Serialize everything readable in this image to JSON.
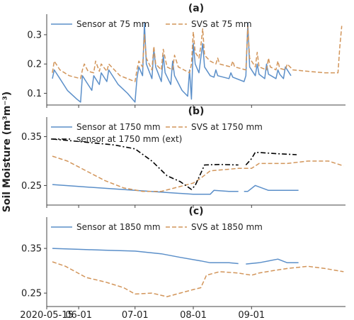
{
  "colors": {
    "sensor": "#5b8fc9",
    "svs": "#d2955a",
    "ext": "#000000",
    "axis": "#444444"
  },
  "ylabel": "Soil Moisture (m³m⁻³)",
  "xaxis": {
    "type": "date",
    "range": [
      "2020-05-15",
      "2020-10-21"
    ],
    "ticks": [
      "2020-05-15",
      "2020-06-01",
      "2020-07-01",
      "2020-08-01",
      "2020-09-01"
    ],
    "tick_labels": [
      "2020-05-15",
      "06-01",
      "07-01",
      "08-01",
      "09-01"
    ]
  },
  "chart_data": [
    {
      "type": "line",
      "title": "(a)",
      "ylim": [
        0.06,
        0.37
      ],
      "yticks": [
        0.1,
        0.2,
        0.3
      ],
      "ytick_labels": [
        "0.1",
        "0.2",
        "0.3"
      ],
      "legend": "top",
      "series": [
        {
          "name": "Sensor at 75 mm",
          "style": "solid",
          "color": "#5b8fc9",
          "points": [
            [
              "2020-05-18",
              0.15
            ],
            [
              "2020-05-19",
              0.18
            ],
            [
              "2020-05-22",
              0.15
            ],
            [
              "2020-05-26",
              0.11
            ],
            [
              "2020-05-31",
              0.08
            ],
            [
              "2020-06-02",
              0.07
            ],
            [
              "2020-06-03",
              0.16
            ],
            [
              "2020-06-05",
              0.14
            ],
            [
              "2020-06-08",
              0.11
            ],
            [
              "2020-06-09",
              0.16
            ],
            [
              "2020-06-12",
              0.13
            ],
            [
              "2020-06-13",
              0.17
            ],
            [
              "2020-06-16",
              0.14
            ],
            [
              "2020-06-17",
              0.18
            ],
            [
              "2020-06-22",
              0.13
            ],
            [
              "2020-06-27",
              0.1
            ],
            [
              "2020-07-01",
              0.07
            ],
            [
              "2020-07-02",
              0.15
            ],
            [
              "2020-07-03",
              0.19
            ],
            [
              "2020-07-05",
              0.16
            ],
            [
              "2020-07-06",
              0.34
            ],
            [
              "2020-07-07",
              0.2
            ],
            [
              "2020-07-10",
              0.15
            ],
            [
              "2020-07-11",
              0.25
            ],
            [
              "2020-07-12",
              0.19
            ],
            [
              "2020-07-15",
              0.14
            ],
            [
              "2020-07-16",
              0.23
            ],
            [
              "2020-07-17",
              0.17
            ],
            [
              "2020-07-20",
              0.13
            ],
            [
              "2020-07-21",
              0.21
            ],
            [
              "2020-07-22",
              0.16
            ],
            [
              "2020-07-26",
              0.11
            ],
            [
              "2020-07-29",
              0.09
            ],
            [
              "2020-07-30",
              0.18
            ],
            [
              "2020-07-31",
              0.08
            ],
            [
              "2020-08-01",
              0.27
            ],
            [
              "2020-08-02",
              0.2
            ],
            [
              "2020-08-04",
              0.17
            ],
            [
              "2020-08-05",
              0.22
            ],
            [
              "2020-08-06",
              0.27
            ],
            [
              "2020-08-07",
              0.19
            ],
            [
              "2020-08-10",
              0.16
            ],
            [
              "2020-08-12",
              0.155
            ],
            [
              "2020-08-13",
              0.18
            ],
            [
              "2020-08-14",
              0.16
            ],
            [
              "2020-08-20",
              0.15
            ],
            [
              "2020-08-21",
              0.17
            ],
            [
              "2020-08-22",
              0.155
            ],
            [
              "2020-08-28",
              0.14
            ],
            [
              "2020-08-29",
              0.16
            ],
            [
              "2020-08-30",
              0.34
            ],
            [
              "2020-08-31",
              0.19
            ],
            [
              "2020-09-03",
              0.16
            ],
            [
              "2020-09-04",
              0.2
            ],
            [
              "2020-09-05",
              0.165
            ],
            [
              "2020-09-08",
              0.15
            ],
            [
              "2020-09-09",
              0.2
            ],
            [
              "2020-09-10",
              0.165
            ],
            [
              "2020-09-14",
              0.15
            ],
            [
              "2020-09-15",
              0.18
            ],
            [
              "2020-09-16",
              0.165
            ],
            [
              "2020-09-18",
              0.15
            ],
            [
              "2020-09-19",
              0.19
            ],
            [
              "2020-09-22",
              0.16
            ]
          ]
        },
        {
          "name": "SVS at 75 mm",
          "style": "dashed",
          "color": "#d2955a",
          "points": [
            [
              "2020-05-18",
              0.17
            ],
            [
              "2020-05-19",
              0.21
            ],
            [
              "2020-05-22",
              0.18
            ],
            [
              "2020-05-27",
              0.16
            ],
            [
              "2020-06-02",
              0.15
            ],
            [
              "2020-06-03",
              0.18
            ],
            [
              "2020-06-04",
              0.2
            ],
            [
              "2020-06-06",
              0.175
            ],
            [
              "2020-06-09",
              0.17
            ],
            [
              "2020-06-10",
              0.21
            ],
            [
              "2020-06-12",
              0.175
            ],
            [
              "2020-06-13",
              0.2
            ],
            [
              "2020-06-16",
              0.175
            ],
            [
              "2020-06-17",
              0.2
            ],
            [
              "2020-06-23",
              0.16
            ],
            [
              "2020-07-01",
              0.14
            ],
            [
              "2020-07-02",
              0.18
            ],
            [
              "2020-07-03",
              0.21
            ],
            [
              "2020-07-05",
              0.19
            ],
            [
              "2020-07-06",
              0.3
            ],
            [
              "2020-07-07",
              0.22
            ],
            [
              "2020-07-10",
              0.18
            ],
            [
              "2020-07-11",
              0.26
            ],
            [
              "2020-07-12",
              0.2
            ],
            [
              "2020-07-15",
              0.18
            ],
            [
              "2020-07-16",
              0.25
            ],
            [
              "2020-07-18",
              0.19
            ],
            [
              "2020-07-21",
              0.18
            ],
            [
              "2020-07-22",
              0.23
            ],
            [
              "2020-07-24",
              0.19
            ],
            [
              "2020-07-30",
              0.17
            ],
            [
              "2020-07-31",
              0.2
            ],
            [
              "2020-08-01",
              0.31
            ],
            [
              "2020-08-02",
              0.24
            ],
            [
              "2020-08-04",
              0.22
            ],
            [
              "2020-08-05",
              0.26
            ],
            [
              "2020-08-06",
              0.32
            ],
            [
              "2020-08-07",
              0.23
            ],
            [
              "2020-08-10",
              0.21
            ],
            [
              "2020-08-13",
              0.2
            ],
            [
              "2020-08-14",
              0.22
            ],
            [
              "2020-08-15",
              0.2
            ],
            [
              "2020-08-21",
              0.19
            ],
            [
              "2020-08-22",
              0.21
            ],
            [
              "2020-08-23",
              0.19
            ],
            [
              "2020-08-29",
              0.18
            ],
            [
              "2020-08-30",
              0.33
            ],
            [
              "2020-08-31",
              0.22
            ],
            [
              "2020-09-03",
              0.19
            ],
            [
              "2020-09-04",
              0.24
            ],
            [
              "2020-09-05",
              0.19
            ],
            [
              "2020-09-09",
              0.18
            ],
            [
              "2020-09-10",
              0.22
            ],
            [
              "2020-09-11",
              0.19
            ],
            [
              "2020-09-14",
              0.18
            ],
            [
              "2020-09-15",
              0.21
            ],
            [
              "2020-09-16",
              0.185
            ],
            [
              "2020-09-19",
              0.18
            ],
            [
              "2020-09-20",
              0.2
            ],
            [
              "2020-09-23",
              0.18
            ],
            [
              "2020-10-01",
              0.175
            ],
            [
              "2020-10-10",
              0.17
            ],
            [
              "2020-10-17",
              0.17
            ],
            [
              "2020-10-18",
              0.26
            ],
            [
              "2020-10-19",
              0.33
            ]
          ]
        }
      ]
    },
    {
      "type": "line",
      "title": "(b)",
      "ylim": [
        0.21,
        0.39
      ],
      "yticks": [
        0.25,
        0.35
      ],
      "ytick_labels": [
        "0.25",
        "0.35"
      ],
      "legend": "top",
      "series": [
        {
          "name": "Sensor at 1750 mm",
          "style": "solid",
          "color": "#5b8fc9",
          "points": [
            [
              "2020-05-18",
              0.252
            ],
            [
              "2020-06-01",
              0.248
            ],
            [
              "2020-07-01",
              0.24
            ],
            [
              "2020-08-01",
              0.232
            ],
            [
              "2020-08-10",
              0.232
            ],
            [
              "2020-08-12",
              0.24
            ],
            [
              "2020-08-20",
              0.238
            ],
            [
              "2020-08-25",
              0.238
            ],
            null,
            [
              "2020-08-28",
              0.238
            ],
            [
              "2020-08-30",
              0.238
            ],
            [
              "2020-09-03",
              0.25
            ],
            [
              "2020-09-10",
              0.24
            ],
            [
              "2020-09-26",
              0.24
            ]
          ]
        },
        {
          "name": "SVS at 1750 mm",
          "style": "dashed",
          "color": "#d2955a",
          "points": [
            [
              "2020-05-18",
              0.31
            ],
            [
              "2020-05-26",
              0.3
            ],
            [
              "2020-06-05",
              0.28
            ],
            [
              "2020-06-15",
              0.26
            ],
            [
              "2020-06-25",
              0.245
            ],
            [
              "2020-07-05",
              0.238
            ],
            [
              "2020-07-15",
              0.238
            ],
            [
              "2020-07-22",
              0.245
            ],
            [
              "2020-08-01",
              0.255
            ],
            [
              "2020-08-05",
              0.265
            ],
            [
              "2020-08-10",
              0.28
            ],
            [
              "2020-08-25",
              0.285
            ],
            [
              "2020-09-01",
              0.285
            ],
            [
              "2020-09-05",
              0.295
            ],
            [
              "2020-09-20",
              0.295
            ],
            [
              "2020-10-01",
              0.3
            ],
            [
              "2020-10-12",
              0.3
            ],
            [
              "2020-10-20",
              0.29
            ]
          ]
        },
        {
          "name": "sensor at 1750 mm (ext)",
          "style": "dashdot",
          "color": "#000000",
          "points": [
            [
              "2020-05-18",
              0.345
            ],
            [
              "2020-06-01",
              0.34
            ],
            [
              "2020-06-20",
              0.333
            ],
            [
              "2020-07-01",
              0.325
            ],
            [
              "2020-07-10",
              0.3
            ],
            [
              "2020-07-18",
              0.27
            ],
            [
              "2020-07-25",
              0.258
            ],
            [
              "2020-07-31",
              0.242
            ],
            [
              "2020-08-02",
              0.25
            ],
            [
              "2020-08-05",
              0.275
            ],
            [
              "2020-08-07",
              0.292
            ],
            [
              "2020-08-15",
              0.293
            ],
            [
              "2020-08-25",
              0.292
            ],
            null,
            [
              "2020-08-29",
              0.292
            ],
            [
              "2020-09-01",
              0.305
            ],
            [
              "2020-09-03",
              0.318
            ],
            [
              "2020-09-15",
              0.315
            ],
            [
              "2020-09-25",
              0.313
            ]
          ]
        }
      ]
    },
    {
      "type": "line",
      "title": "(c)",
      "ylim": [
        0.22,
        0.42
      ],
      "yticks": [
        0.25,
        0.35
      ],
      "ytick_labels": [
        "0.25",
        "0.35"
      ],
      "legend": "top",
      "series": [
        {
          "name": "Sensor at 1850 mm",
          "style": "solid",
          "color": "#5b8fc9",
          "points": [
            [
              "2020-05-18",
              0.35
            ],
            [
              "2020-06-01",
              0.348
            ],
            [
              "2020-06-15",
              0.346
            ],
            [
              "2020-07-01",
              0.344
            ],
            [
              "2020-07-15",
              0.338
            ],
            [
              "2020-07-25",
              0.33
            ],
            [
              "2020-08-05",
              0.322
            ],
            [
              "2020-08-10",
              0.318
            ],
            [
              "2020-08-20",
              0.318
            ],
            [
              "2020-08-25",
              0.316
            ],
            null,
            [
              "2020-08-29",
              0.315
            ],
            [
              "2020-09-05",
              0.318
            ],
            [
              "2020-09-15",
              0.326
            ],
            [
              "2020-09-20",
              0.318
            ],
            [
              "2020-09-26",
              0.318
            ]
          ]
        },
        {
          "name": "SVS at 1850 mm",
          "style": "dashed",
          "color": "#d2955a",
          "points": [
            [
              "2020-05-18",
              0.32
            ],
            [
              "2020-05-25",
              0.31
            ],
            [
              "2020-06-05",
              0.285
            ],
            [
              "2020-06-15",
              0.275
            ],
            [
              "2020-06-25",
              0.262
            ],
            [
              "2020-07-01",
              0.248
            ],
            [
              "2020-07-10",
              0.25
            ],
            [
              "2020-07-18",
              0.242
            ],
            [
              "2020-07-25",
              0.25
            ],
            [
              "2020-08-01",
              0.258
            ],
            [
              "2020-08-05",
              0.262
            ],
            [
              "2020-08-08",
              0.29
            ],
            [
              "2020-08-15",
              0.298
            ],
            [
              "2020-08-25",
              0.295
            ],
            [
              "2020-09-01",
              0.29
            ],
            [
              "2020-09-05",
              0.295
            ],
            [
              "2020-09-12",
              0.3
            ],
            [
              "2020-09-20",
              0.305
            ],
            [
              "2020-10-01",
              0.31
            ],
            [
              "2020-10-10",
              0.305
            ],
            [
              "2020-10-20",
              0.298
            ]
          ]
        }
      ]
    }
  ]
}
